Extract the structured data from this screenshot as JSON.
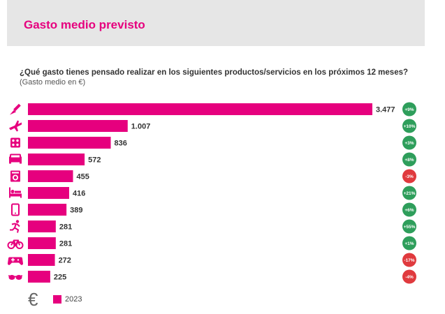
{
  "header": {
    "title": "Gasto medio previsto"
  },
  "chart_data": {
    "type": "bar",
    "orientation": "horizontal",
    "question": "¿Qué gasto tienes pensado realizar en los siguientes productos/servicios en los próximos 12 meses?",
    "subtitle": "(Gasto medio en €)",
    "legend": {
      "symbol": "€",
      "label": "2023"
    },
    "colors": {
      "bar": "#e6007e",
      "positive": "#2e9e5b",
      "negative": "#e03a3e"
    },
    "categories": [
      {
        "icon": "paintbrush-icon",
        "label": "3.477",
        "value": 3477,
        "change": "+9%",
        "trend": "up"
      },
      {
        "icon": "airplane-icon",
        "label": "1.007",
        "value": 1007,
        "change": "+10%",
        "trend": "up"
      },
      {
        "icon": "cooktop-icon",
        "label": "836",
        "value": 836,
        "change": "+3%",
        "trend": "up"
      },
      {
        "icon": "sofa-icon",
        "label": "572",
        "value": 572,
        "change": "+8%",
        "trend": "up"
      },
      {
        "icon": "washing-machine-icon",
        "label": "455",
        "value": 455,
        "change": "-3%",
        "trend": "down"
      },
      {
        "icon": "bed-icon",
        "label": "416",
        "value": 416,
        "change": "+21%",
        "trend": "up"
      },
      {
        "icon": "smartphone-icon",
        "label": "389",
        "value": 389,
        "change": "+6%",
        "trend": "up"
      },
      {
        "icon": "running-person-icon",
        "label": "281",
        "value": 281,
        "change": "+55%",
        "trend": "up"
      },
      {
        "icon": "bicycle-icon",
        "label": "281",
        "value": 281,
        "change": "+1%",
        "trend": "up"
      },
      {
        "icon": "gamepad-icon",
        "label": "272",
        "value": 272,
        "change": "-17%",
        "trend": "down"
      },
      {
        "icon": "sunglasses-icon",
        "label": "225",
        "value": 225,
        "change": "-4%",
        "trend": "down"
      }
    ],
    "xlim": [
      0,
      3477
    ],
    "grid": false
  }
}
